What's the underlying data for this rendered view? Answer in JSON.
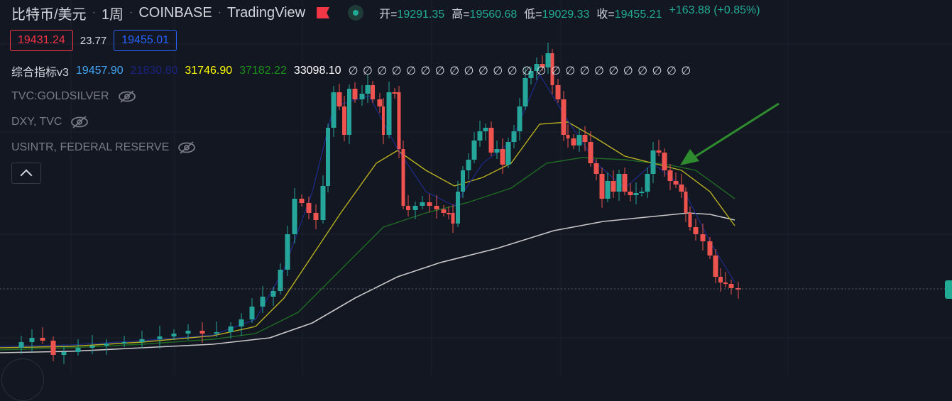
{
  "header": {
    "symbol": "比特币/美元",
    "interval": "1周",
    "exchange": "COINBASE",
    "platform": "TradingView",
    "ohlc": {
      "open_label": "开=",
      "open": "19291.35",
      "high_label": "高=",
      "high": "19560.68",
      "low_label": "低=",
      "low": "19029.33",
      "close_label": "收=",
      "close": "19455.21",
      "change": "+163.88 (+0.85%)"
    }
  },
  "quote": {
    "bid": "19431.24",
    "spread": "23.77",
    "ask": "19455.01"
  },
  "indicator": {
    "name": "综合指标v3",
    "values": [
      {
        "text": "19457.90",
        "color": "#42a5f5"
      },
      {
        "text": "21830.80",
        "color": "#1a237e"
      },
      {
        "text": "31746.90",
        "color": "#ffff00"
      },
      {
        "text": "37182.22",
        "color": "#1b8e1b"
      },
      {
        "text": "33098.10",
        "color": "#ffffff"
      }
    ],
    "zero_glyph": "∅",
    "zero_count": 24
  },
  "overlays": [
    {
      "label": "TVC:GOLDSILVER",
      "icon": "eye-off-icon"
    },
    {
      "label": "DXY, TVC",
      "icon": "eye-off-icon"
    },
    {
      "label": "USINTR, FEDERAL RESERVE",
      "icon": "eye-off-icon"
    }
  ],
  "colors": {
    "background": "#131722",
    "up": "#26a69a",
    "down": "#ef5350",
    "ma_fast": "#1e2a8a",
    "ma_yellow": "#b8b020",
    "ma_green": "#1f6b24",
    "ma_white": "#c8c8c8",
    "arrow": "#2e8b2e"
  },
  "chart_data": {
    "type": "candlestick",
    "period": "weekly",
    "ohlc": [
      [
        19291.35,
        19560.68,
        19029.33,
        19455.21
      ]
    ],
    "annotations": [
      {
        "type": "arrow",
        "color": "green"
      }
    ],
    "moving_averages": 4
  }
}
